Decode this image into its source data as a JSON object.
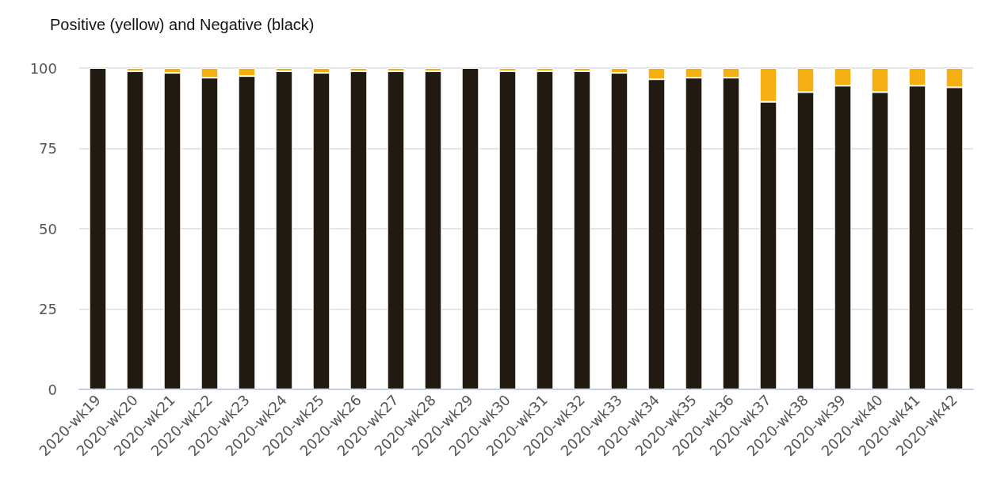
{
  "chart_data": {
    "type": "bar",
    "title": "Positive (yellow) and Negative (black)",
    "stacked": true,
    "grid": "y",
    "legend": false,
    "categories": [
      "2020-wk19",
      "2020-wk20",
      "2020-wk21",
      "2020-wk22",
      "2020-wk23",
      "2020-wk24",
      "2020-wk25",
      "2020-wk26",
      "2020-wk27",
      "2020-wk28",
      "2020-wk29",
      "2020-wk30",
      "2020-wk31",
      "2020-wk32",
      "2020-wk33",
      "2020-wk34",
      "2020-wk35",
      "2020-wk36",
      "2020-wk37",
      "2020-wk38",
      "2020-wk39",
      "2020-wk40",
      "2020-wk41",
      "2020-wk42"
    ],
    "series": [
      {
        "color": "#211a10",
        "values": [
          100,
          99,
          98.5,
          97,
          97.5,
          99,
          98.5,
          99,
          99,
          99,
          100,
          99,
          99,
          99,
          98.5,
          96.5,
          97,
          97,
          89.5,
          92.5,
          94.5,
          92.5,
          94.5,
          94
        ]
      },
      {
        "color": "#f4b012",
        "values": [
          0,
          1,
          1.5,
          3,
          2.5,
          1,
          1.5,
          1,
          1,
          1,
          0,
          1,
          1,
          1,
          1.5,
          3.5,
          3,
          3,
          10.5,
          7.5,
          5.5,
          7.5,
          5.5,
          6
        ]
      }
    ],
    "ylim": [
      0,
      100
    ],
    "yticks": [
      0,
      25,
      50,
      75,
      100
    ]
  }
}
